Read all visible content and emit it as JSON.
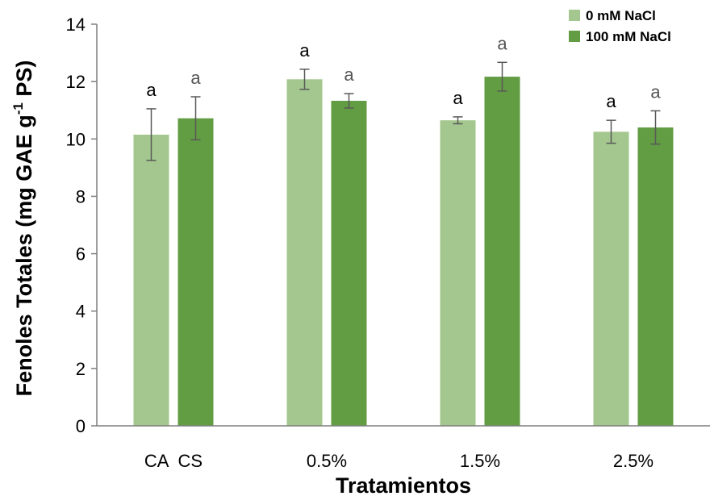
{
  "chart_data": {
    "type": "bar",
    "title": "",
    "xlabel": "Tratamientos",
    "ylabel": "Fenoles Totales (mg GAE g-1 PS)",
    "ylabel_parts": {
      "before": "Fenoles Totales (mg GAE g",
      "sup": "-1",
      "after": " PS)"
    },
    "ylim": [
      0,
      14
    ],
    "yticks": [
      "0",
      "2",
      "4",
      "6",
      "8",
      "10",
      "12",
      "14"
    ],
    "grid": false,
    "legend_position": "top-right",
    "groups": [
      {
        "label": "CA  CS"
      },
      {
        "label": "0.5%"
      },
      {
        "label": "1.5%"
      },
      {
        "label": "2.5%"
      }
    ],
    "series": [
      {
        "name": "0 mM NaCl",
        "color": "#a3c78e",
        "values": [
          10.15,
          12.08,
          10.65,
          10.25
        ],
        "errors": [
          0.9,
          0.35,
          0.12,
          0.4
        ],
        "sig": [
          "a",
          "a",
          "a",
          "a"
        ]
      },
      {
        "name": "100 mM NaCl",
        "color": "#629c43",
        "values": [
          10.72,
          11.33,
          12.17,
          10.4
        ],
        "errors": [
          0.75,
          0.25,
          0.5,
          0.58
        ],
        "sig": [
          "a",
          "a",
          "a",
          "a"
        ]
      }
    ],
    "sig_colors": [
      "#000000",
      "#555555"
    ]
  }
}
